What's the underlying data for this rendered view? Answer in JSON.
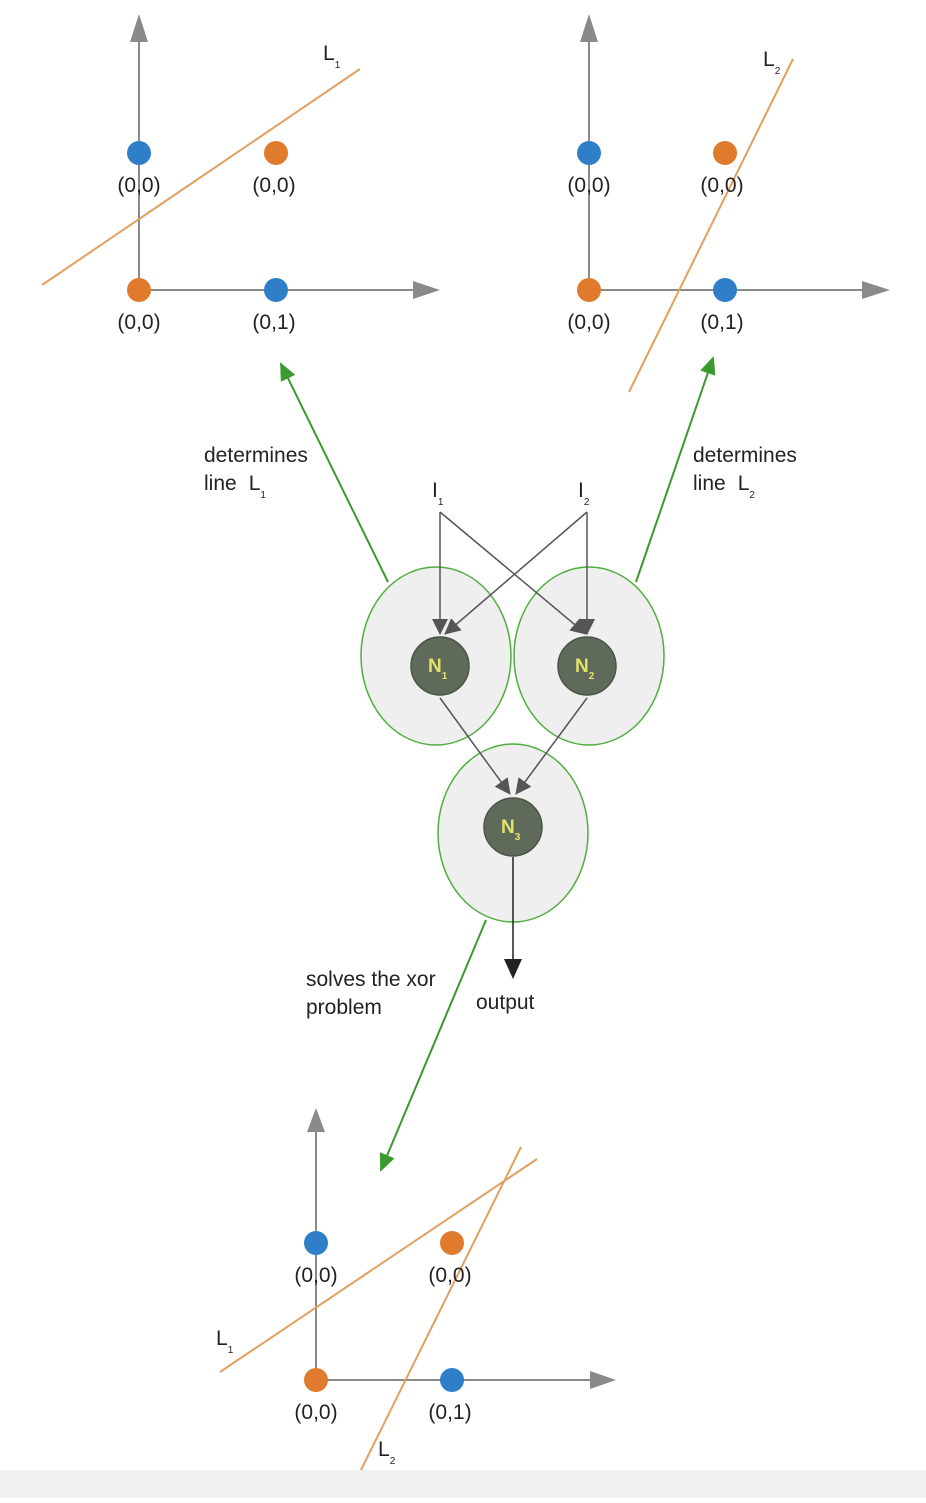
{
  "colors": {
    "blue_point": "#2f7fc8",
    "orange_point": "#e07b2e",
    "axis": "#8a8a8a",
    "decision_line": "#e0a060",
    "green_arrow": "#3a9a2e",
    "neuron_fill": "#5f6a5a",
    "neuron_label": "#e3e36a",
    "neuron_halo": "#efefef",
    "neuron_halo_stroke": "#4fae3f"
  },
  "plots": {
    "top_left": {
      "line_label": "L",
      "line_label_sub": "1",
      "points": [
        {
          "label": "(0,0)",
          "color": "blue"
        },
        {
          "label": "(0,0)",
          "color": "orange"
        },
        {
          "label": "(0,0)",
          "color": "orange"
        },
        {
          "label": "(0,1)",
          "color": "blue"
        }
      ]
    },
    "top_right": {
      "line_label": "L",
      "line_label_sub": "2",
      "points": [
        {
          "label": "(0,0)",
          "color": "blue"
        },
        {
          "label": "(0,0)",
          "color": "orange"
        },
        {
          "label": "(0,0)",
          "color": "orange"
        },
        {
          "label": "(0,1)",
          "color": "blue"
        }
      ]
    },
    "bottom": {
      "line1_label": "L",
      "line1_label_sub": "1",
      "line2_label": "L",
      "line2_label_sub": "2",
      "points": [
        {
          "label": "(0,0)",
          "color": "blue"
        },
        {
          "label": "(0,0)",
          "color": "orange"
        },
        {
          "label": "(0,0)",
          "color": "orange"
        },
        {
          "label": "(0,1)",
          "color": "blue"
        }
      ]
    }
  },
  "network": {
    "inputs": [
      {
        "label": "I",
        "sub": "1"
      },
      {
        "label": "I",
        "sub": "2"
      }
    ],
    "neurons": [
      {
        "label": "N",
        "sub": "1"
      },
      {
        "label": "N",
        "sub": "2"
      },
      {
        "label": "N",
        "sub": "3"
      }
    ],
    "output_label": "output"
  },
  "annotations": {
    "left": {
      "line1": "determines",
      "line2": "line",
      "line_name": "L",
      "line_sub": "1"
    },
    "right": {
      "line1": "determines",
      "line2": "line",
      "line_name": "L",
      "line_sub": "2"
    },
    "bottom": {
      "line1": "solves the xor",
      "line2": "problem"
    }
  }
}
